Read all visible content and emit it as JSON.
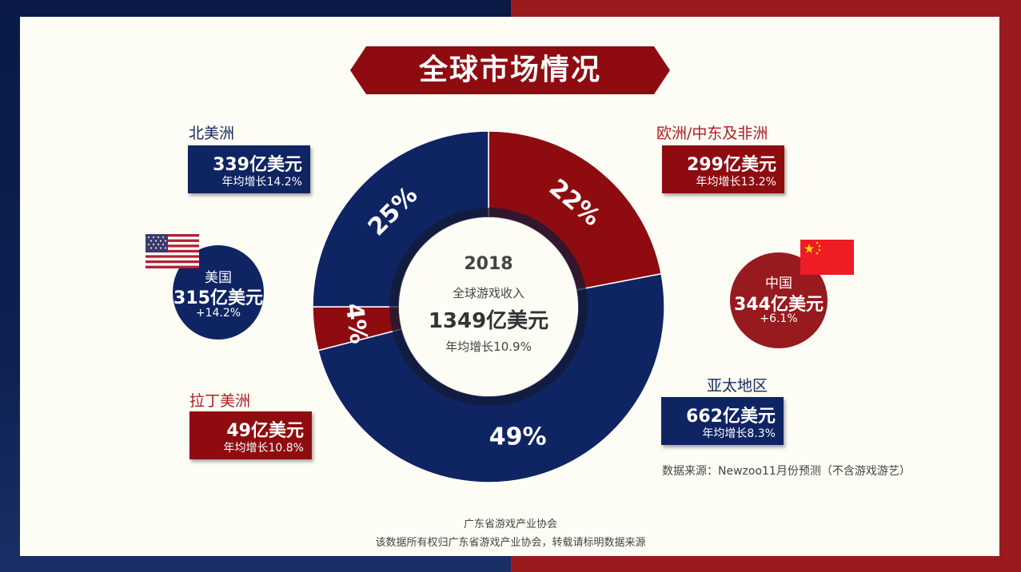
{
  "title": "全球市场情况",
  "colors": {
    "blue": "#0f2463",
    "red": "#8e0c10",
    "accent_red": "#b01c20"
  },
  "center": {
    "year": "2018",
    "label": "全球游戏收入",
    "total": "1349亿美元",
    "growth": "年均增长10.9%"
  },
  "regions": {
    "north_america": {
      "name": "北美洲",
      "amount": "339亿美元",
      "growth": "年均增长14.2%"
    },
    "emea": {
      "name": "欧洲/中东及非洲",
      "amount": "299亿美元",
      "growth": "年均增长13.2%"
    },
    "latin_america": {
      "name": "拉丁美洲",
      "amount": "49亿美元",
      "growth": "年均增长10.8%"
    },
    "asia_pacific": {
      "name": "亚太地区",
      "amount": "662亿美元",
      "growth": "年均增长8.3%"
    }
  },
  "countries": {
    "usa": {
      "name": "美国",
      "amount": "315亿美元",
      "growth": "+14.2%",
      "flag_icon": "usa-flag-icon"
    },
    "china": {
      "name": "中国",
      "amount": "344亿美元",
      "growth": "+6.1%",
      "flag_icon": "china-flag-icon"
    }
  },
  "chart_data": {
    "type": "pie",
    "variant": "donut",
    "categories": [
      "欧洲/中东及非洲",
      "亚太地区",
      "拉丁美洲",
      "北美洲"
    ],
    "values": [
      22,
      49,
      4,
      25
    ],
    "labels": [
      "22%",
      "49%",
      "4%",
      "25%"
    ],
    "colors": [
      "#8e0c10",
      "#0f2463",
      "#8e0c10",
      "#0f2463"
    ]
  },
  "source": "数据来源：Newzoo11月份预测（不含游戏游艺）",
  "footer": {
    "line1": "广东省游戏产业协会",
    "line2": "该数据所有权归广东省游戏产业协会，转载请标明数据来源"
  }
}
